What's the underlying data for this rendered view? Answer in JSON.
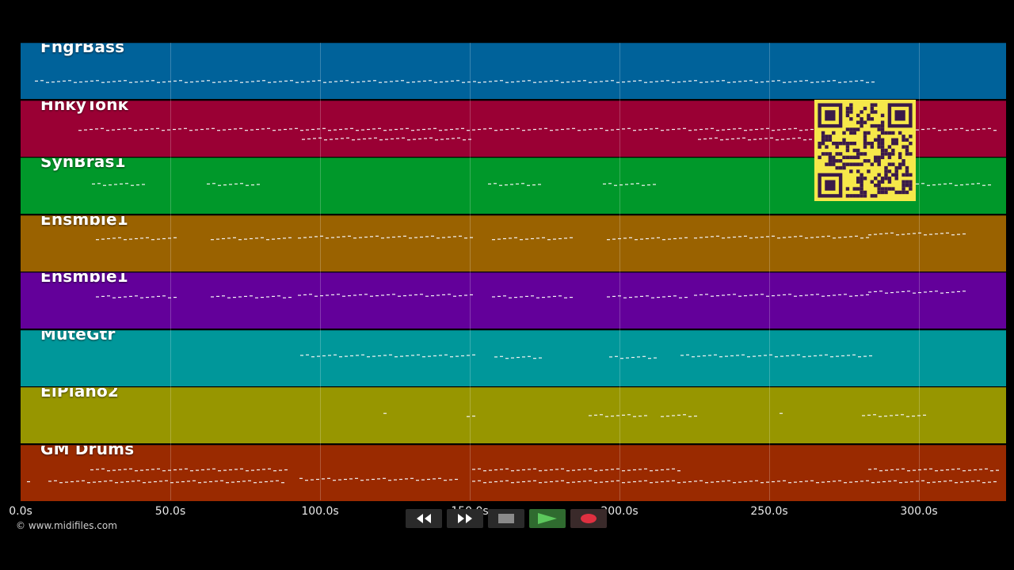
{
  "tracks": [
    {
      "name": "FngrBass",
      "color": "#00629a"
    },
    {
      "name": "HnkyTonk",
      "color": "#9a0034"
    },
    {
      "name": "SynBras1",
      "color": "#00982a"
    },
    {
      "name": "Ensmble1",
      "color": "#9a6200"
    },
    {
      "name": "Ensmble1",
      "color": "#63009a"
    },
    {
      "name": "MuteGtr",
      "color": "#00979a"
    },
    {
      "name": "ElPiano2",
      "color": "#979600"
    },
    {
      "name": "GM Drums",
      "color": "#9a2a00"
    }
  ],
  "timeline": {
    "ticks": [
      "0.0s",
      "50.0s",
      "100.0s",
      "150.0s",
      "200.0s",
      "250.0s",
      "300.0s"
    ],
    "tick_values": [
      0,
      50,
      100,
      150,
      200,
      250,
      300
    ],
    "max_seconds": 329
  },
  "copyright": "© www.midifiles.com",
  "transport": {
    "rewind_icon": "rewind-icon",
    "forward_icon": "fast-forward-icon",
    "stop_icon": "stop-icon",
    "play_icon": "play-icon",
    "record_icon": "record-icon",
    "play_color": "#5cc85c",
    "record_color": "#e03040"
  },
  "qr_code": {
    "color": "#f6e84a",
    "module_color": "#3a1a4a"
  }
}
